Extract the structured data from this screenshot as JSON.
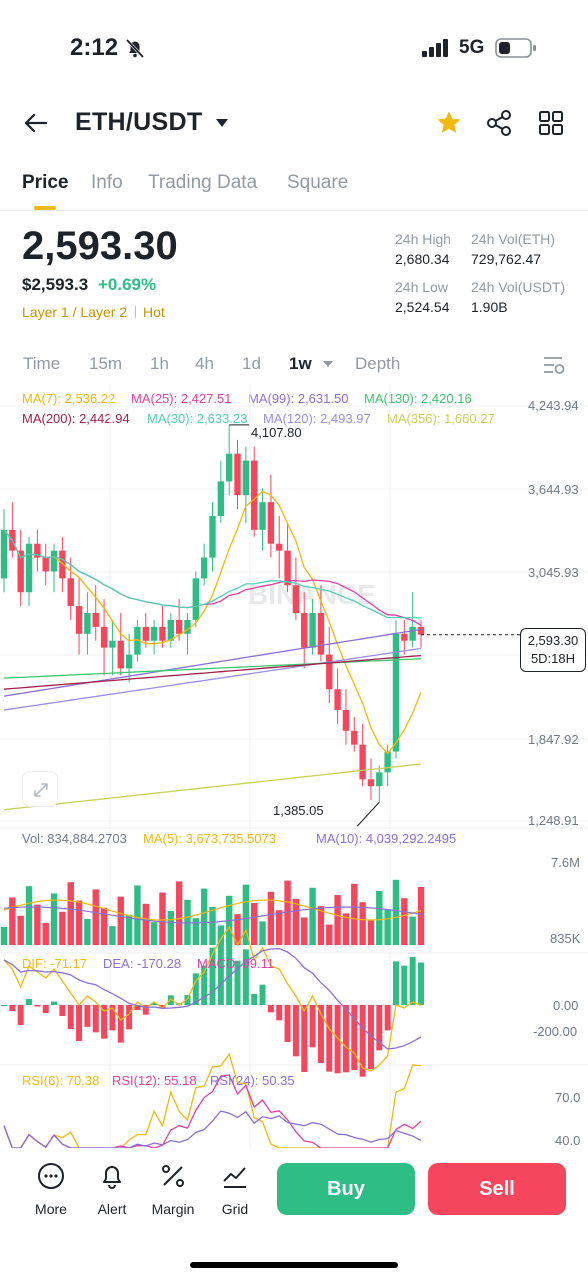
{
  "status_bar": {
    "time": "2:12",
    "network": "5G"
  },
  "header": {
    "pair": "ETH/USDT"
  },
  "tabs": [
    {
      "label": "Price",
      "active": true
    },
    {
      "label": "Info",
      "active": false
    },
    {
      "label": "Trading Data",
      "active": false
    },
    {
      "label": "Square",
      "active": false
    }
  ],
  "price": {
    "last": "2,593.30",
    "usd": "$2,593.3",
    "change": "+0.69%",
    "tag1": "Layer 1 / Layer 2",
    "tag2": "Hot"
  },
  "stats": {
    "high_label": "24h High",
    "high_value": "2,680.34",
    "vol_eth_label": "24h Vol(ETH)",
    "vol_eth_value": "729,762.47",
    "low_label": "24h Low",
    "low_value": "2,524.54",
    "vol_usdt_label": "24h Vol(USDT)",
    "vol_usdt_value": "1.90B"
  },
  "intervals": [
    "Time",
    "15m",
    "1h",
    "4h",
    "1d",
    "1w",
    "Depth"
  ],
  "active_interval": "1w",
  "ma_legend": {
    "ma7": "MA(7): 2,536.22",
    "ma25": "MA(25): 2,427.51",
    "ma99": "MA(99): 2,631.50",
    "ma130": "MA(130): 2,420.16",
    "ma200": "MA(200): 2,442.94",
    "ma30": "MA(30): 2,633.23",
    "ma120": "MA(120): 2,493.97",
    "ma356": "MA(356): 1,660.27"
  },
  "price_axis": [
    "4,243.94",
    "3,644.93",
    "3,045.93",
    "1,847.92",
    "1,248.91"
  ],
  "annotations": {
    "high": "4,107.80",
    "low": "1,385.05"
  },
  "current_tag": {
    "price": "2,593.30",
    "countdown": "5D:18H"
  },
  "watermark": "BINANCE",
  "volume": {
    "vol": "Vol: 834,884.2703",
    "ma5": "MA(5): 3,673,735.5073",
    "ma10": "MA(10): 4,039,292.2495",
    "axis_top": "7.6M",
    "axis_bottom": "835K"
  },
  "macd": {
    "dif": "DIF: -71.17",
    "dea": "DEA: -170.28",
    "macd": "MACD: 99.11",
    "axis_zero": "0.00",
    "axis_low": "-200.00"
  },
  "rsi": {
    "rsi6": "RSI(6): 70.38",
    "rsi12": "RSI(12): 55.18",
    "rsi24": "RSI(24): 50.35",
    "axis_70": "70.0",
    "axis_40": "40.0"
  },
  "bottom_bar": {
    "more": "More",
    "alert": "Alert",
    "margin": "Margin",
    "grid": "Grid",
    "buy": "Buy",
    "sell": "Sell"
  },
  "colors": {
    "up": "#2ebd85",
    "down": "#f6465d",
    "accent": "#f0b90b",
    "ma7": "#f0b90b",
    "ma25": "#e040a0",
    "ma99": "#8c6fd6",
    "ma130": "#3cc76d",
    "ma200": "#a0224a",
    "ma30": "#4fd1b5",
    "ma120": "#9a8fe0",
    "ma356": "#c9cf5a"
  },
  "chart_data": {
    "type": "candlestick",
    "interval": "1w",
    "ohlc": [
      [
        3000,
        3500,
        2900,
        3350
      ],
      [
        3350,
        3550,
        3150,
        3200
      ],
      [
        3200,
        3350,
        2800,
        2900
      ],
      [
        2900,
        3300,
        2800,
        3250
      ],
      [
        3250,
        3350,
        3050,
        3150
      ],
      [
        3150,
        3250,
        2950,
        3050
      ],
      [
        3050,
        3250,
        2900,
        3200
      ],
      [
        3200,
        3300,
        2900,
        3000
      ],
      [
        3000,
        3150,
        2700,
        2800
      ],
      [
        2800,
        3000,
        2450,
        2600
      ],
      [
        2600,
        2900,
        2450,
        2750
      ],
      [
        2750,
        2950,
        2550,
        2650
      ],
      [
        2650,
        2850,
        2300,
        2500
      ],
      [
        2500,
        2700,
        2300,
        2550
      ],
      [
        2550,
        2750,
        2300,
        2350
      ],
      [
        2350,
        2600,
        2250,
        2450
      ],
      [
        2450,
        2700,
        2400,
        2650
      ],
      [
        2650,
        2750,
        2500,
        2550
      ],
      [
        2550,
        2700,
        2450,
        2650
      ],
      [
        2650,
        2800,
        2500,
        2550
      ],
      [
        2550,
        2750,
        2500,
        2700
      ],
      [
        2700,
        2850,
        2550,
        2600
      ],
      [
        2600,
        2750,
        2450,
        2700
      ],
      [
        2700,
        3050,
        2650,
        3000
      ],
      [
        3000,
        3250,
        2950,
        3150
      ],
      [
        3150,
        3550,
        3050,
        3450
      ],
      [
        3450,
        3850,
        3400,
        3700
      ],
      [
        3700,
        4108,
        3600,
        3900
      ],
      [
        3900,
        4000,
        3500,
        3600
      ],
      [
        3600,
        3950,
        3400,
        3850
      ],
      [
        3850,
        3950,
        3300,
        3350
      ],
      [
        3350,
        3650,
        3200,
        3550
      ],
      [
        3550,
        3750,
        3150,
        3250
      ],
      [
        3250,
        3450,
        3000,
        3200
      ],
      [
        3200,
        3400,
        2900,
        2950
      ],
      [
        2950,
        3150,
        2700,
        2750
      ],
      [
        2750,
        2900,
        2350,
        2500
      ],
      [
        2500,
        2850,
        2450,
        2750
      ],
      [
        2750,
        2950,
        2400,
        2450
      ],
      [
        2450,
        2650,
        2100,
        2200
      ],
      [
        2200,
        2350,
        1950,
        2050
      ],
      [
        2050,
        2200,
        1800,
        1900
      ],
      [
        1900,
        2000,
        1750,
        1800
      ],
      [
        1800,
        1950,
        1500,
        1550
      ],
      [
        1550,
        1700,
        1400,
        1500
      ],
      [
        1500,
        1650,
        1385,
        1600
      ],
      [
        1600,
        1800,
        1500,
        1750
      ],
      [
        1750,
        2700,
        1700,
        2600
      ],
      [
        2600,
        2700,
        2450,
        2550
      ],
      [
        2550,
        2900,
        2500,
        2650
      ],
      [
        2650,
        2700,
        2500,
        2593.3
      ]
    ],
    "price_axis_ticks": [
      4243.94,
      3644.93,
      3045.93,
      1847.92,
      1248.91
    ],
    "volume_axis": [
      "835K",
      "7.6M"
    ],
    "macd_axis": [
      0.0,
      -200.0
    ],
    "rsi_axis": [
      70.0,
      40.0
    ]
  }
}
